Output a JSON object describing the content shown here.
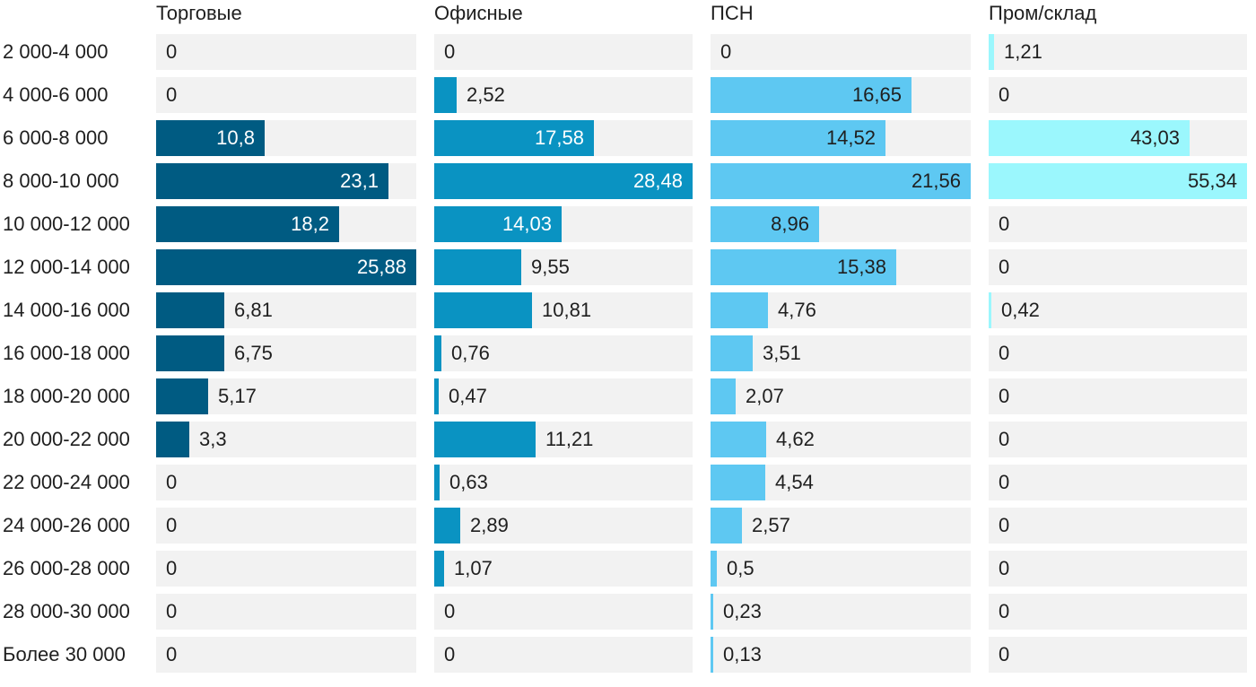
{
  "chart_data": {
    "type": "bar",
    "orientation": "horizontal",
    "layout": "small-multiples",
    "categories": [
      "2 000-4 000",
      "4 000-6 000",
      "6 000-8 000",
      "8 000-10 000",
      "10 000-12 000",
      "12 000-14 000",
      "14 000-16 000",
      "16 000-18 000",
      "18 000-20 000",
      "20 000-22 000",
      "22 000-24 000",
      "24 000-26 000",
      "26 000-28 000",
      "28 000-30 000",
      "Более 30 000"
    ],
    "series": [
      {
        "name": "Торговые",
        "color": "#005b82",
        "label_color_inside": "#ffffff",
        "values": [
          "0",
          "0",
          "10,8",
          "23,1",
          "18,2",
          "25,88",
          "6,81",
          "6,75",
          "5,17",
          "3,3",
          "0",
          "0",
          "0",
          "0",
          "0"
        ]
      },
      {
        "name": "Офисные",
        "color": "#0a93c2",
        "label_color_inside": "#ffffff",
        "values": [
          "0",
          "2,52",
          "17,58",
          "28,48",
          "14,03",
          "9,55",
          "10,81",
          "0,76",
          "0,47",
          "11,21",
          "0,63",
          "2,89",
          "1,07",
          "0",
          "0"
        ]
      },
      {
        "name": "ПСН",
        "color": "#5ec8f2",
        "label_color_inside": "#1f1f1f",
        "values": [
          "0",
          "16,65",
          "14,52",
          "21,56",
          "8,96",
          "15,38",
          "4,76",
          "3,51",
          "2,07",
          "4,62",
          "4,54",
          "2,57",
          "0,5",
          "0,23",
          "0,13"
        ]
      },
      {
        "name": "Пром/склад",
        "color": "#9bf7fd",
        "label_color_inside": "#1f1f1f",
        "values": [
          "1,21",
          "0",
          "43,03",
          "55,34",
          "0",
          "0",
          "0,42",
          "0",
          "0",
          "0",
          "0",
          "0",
          "0",
          "0",
          "0"
        ]
      }
    ],
    "background_color": "#f2f2f2",
    "grid": false,
    "legend": "none"
  }
}
